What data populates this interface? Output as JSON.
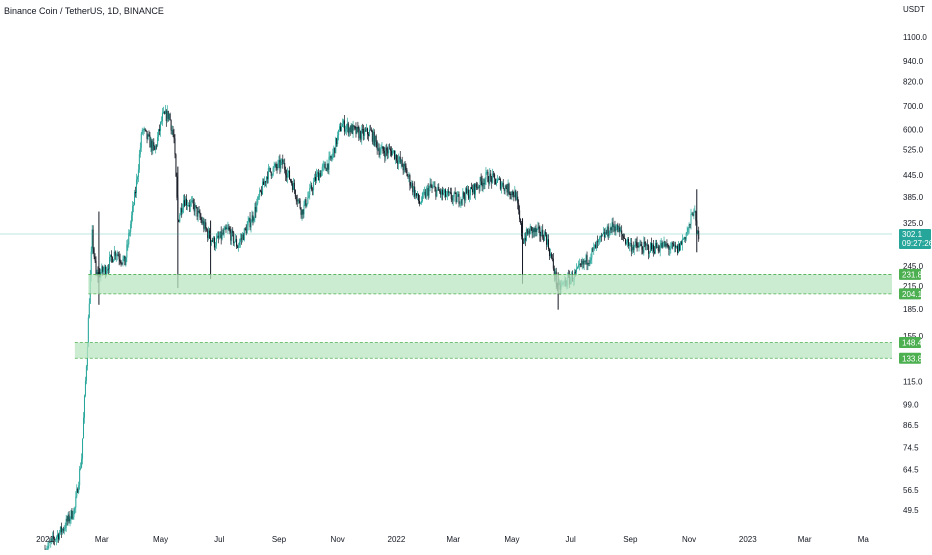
{
  "header": {
    "symbol": "Binance Coin / TetherUS, 1D, BINANCE"
  },
  "axis": {
    "currency": "USDT"
  },
  "colors": {
    "up": "#26a69a",
    "down": "#131722",
    "zone_fill": "#b9e6c0",
    "zone_border": "#4caf50",
    "badge_zone": "#4caf50",
    "badge_price": "#26a69a",
    "price_line": "#26a69a"
  },
  "chart_data": {
    "type": "candlestick",
    "title": "Binance Coin / TetherUS, 1D, BINANCE",
    "scale": "log",
    "ylim": [
      44,
      1400
    ],
    "y_ticks": [
      1100.0,
      940.0,
      820.0,
      700.0,
      600.0,
      525.0,
      445.0,
      385.0,
      325.0,
      245.0,
      215.0,
      185.0,
      155.0,
      133.8,
      115.0,
      99.0,
      86.5,
      74.5,
      64.5,
      56.5,
      49.5
    ],
    "x_labels": [
      "2021",
      "Mar",
      "May",
      "Jul",
      "Sep",
      "Nov",
      "2022",
      "Mar",
      "May",
      "Jul",
      "Sep",
      "Nov",
      "2023",
      "Mar",
      "Ma"
    ],
    "x_range": [
      "2021-01-01",
      "2023-05-10"
    ],
    "price_path": [
      [
        "2021-01-01",
        38
      ],
      [
        "2021-01-20",
        44
      ],
      [
        "2021-02-01",
        50
      ],
      [
        "2021-02-08",
        70
      ],
      [
        "2021-02-13",
        130
      ],
      [
        "2021-02-19",
        300
      ],
      [
        "2021-02-23",
        230
      ],
      [
        "2021-03-05",
        240
      ],
      [
        "2021-03-15",
        270
      ],
      [
        "2021-03-25",
        250
      ],
      [
        "2021-04-05",
        400
      ],
      [
        "2021-04-12",
        600
      ],
      [
        "2021-04-25",
        520
      ],
      [
        "2021-05-03",
        650
      ],
      [
        "2021-05-10",
        660
      ],
      [
        "2021-05-15",
        560
      ],
      [
        "2021-05-19",
        330
      ],
      [
        "2021-05-25",
        380
      ],
      [
        "2021-06-05",
        360
      ],
      [
        "2021-06-20",
        300
      ],
      [
        "2021-06-26",
        285
      ],
      [
        "2021-07-10",
        310
      ],
      [
        "2021-07-20",
        280
      ],
      [
        "2021-08-05",
        340
      ],
      [
        "2021-08-20",
        450
      ],
      [
        "2021-09-05",
        480
      ],
      [
        "2021-09-15",
        420
      ],
      [
        "2021-09-25",
        350
      ],
      [
        "2021-10-10",
        440
      ],
      [
        "2021-10-25",
        490
      ],
      [
        "2021-11-05",
        620
      ],
      [
        "2021-11-15",
        600
      ],
      [
        "2021-11-25",
        580
      ],
      [
        "2021-12-05",
        590
      ],
      [
        "2021-12-15",
        520
      ],
      [
        "2021-12-28",
        520
      ],
      [
        "2022-01-10",
        460
      ],
      [
        "2022-01-25",
        370
      ],
      [
        "2022-02-05",
        410
      ],
      [
        "2022-02-20",
        390
      ],
      [
        "2022-03-05",
        380
      ],
      [
        "2022-03-20",
        400
      ],
      [
        "2022-04-05",
        440
      ],
      [
        "2022-04-20",
        420
      ],
      [
        "2022-05-05",
        390
      ],
      [
        "2022-05-12",
        290
      ],
      [
        "2022-05-20",
        310
      ],
      [
        "2022-06-05",
        300
      ],
      [
        "2022-06-12",
        250
      ],
      [
        "2022-06-18",
        210
      ],
      [
        "2022-06-25",
        220
      ],
      [
        "2022-07-05",
        230
      ],
      [
        "2022-07-20",
        260
      ],
      [
        "2022-08-05",
        300
      ],
      [
        "2022-08-15",
        320
      ],
      [
        "2022-09-01",
        280
      ],
      [
        "2022-09-20",
        275
      ],
      [
        "2022-10-05",
        280
      ],
      [
        "2022-10-20",
        272
      ],
      [
        "2022-11-01",
        315
      ],
      [
        "2022-11-06",
        360
      ],
      [
        "2022-11-09",
        300
      ],
      [
        "2022-11-11",
        302
      ]
    ],
    "wicks": [
      {
        "date": "2021-02-26",
        "high": 350,
        "low": 190
      },
      {
        "date": "2021-05-19",
        "high": 470,
        "low": 212
      },
      {
        "date": "2021-06-22",
        "high": 330,
        "low": 225
      },
      {
        "date": "2022-05-12",
        "high": 335,
        "low": 218
      },
      {
        "date": "2022-06-18",
        "high": 235,
        "low": 184
      },
      {
        "date": "2022-11-09",
        "high": 405,
        "low": 268
      }
    ],
    "zones": [
      {
        "top": 231.8,
        "bottom": 204.1,
        "start": "2021-02-15",
        "top_label": "231.8",
        "bottom_label": "204.1"
      },
      {
        "top": 148.4,
        "bottom": 133.8,
        "start": "2021-02-01",
        "top_label": "148.4",
        "bottom_label": "133.8"
      }
    ],
    "last_price": {
      "value": 302.1,
      "label": "302.1",
      "countdown": "09:27:26"
    }
  }
}
